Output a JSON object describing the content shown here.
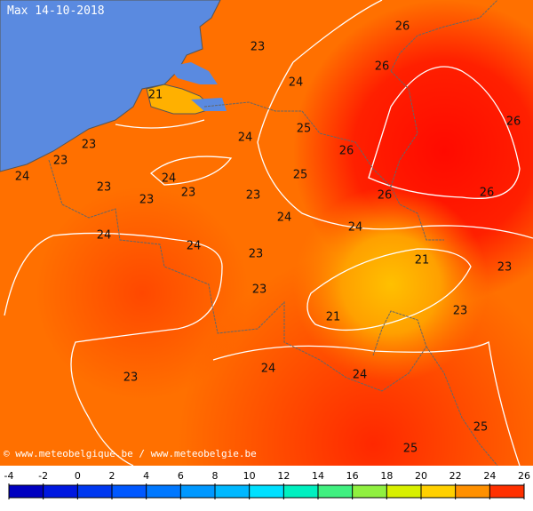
{
  "title": "Max 14-10-2018",
  "credit": "© www.meteobelgique.be / www.meteobelgie.be",
  "map_labels": [
    23,
    26,
    26,
    24,
    21,
    26,
    25,
    24,
    23,
    26,
    23,
    24,
    25,
    24,
    23,
    23,
    26,
    26,
    23,
    23,
    24,
    24,
    24,
    24,
    23,
    21,
    23,
    23,
    23,
    21,
    24,
    24,
    23,
    25,
    25
  ],
  "colorbar": {
    "ticks": [
      -4,
      -2,
      0,
      2,
      4,
      6,
      8,
      10,
      12,
      14,
      16,
      18,
      20,
      22,
      24,
      26
    ],
    "colors": [
      "#0000c0",
      "#0018e0",
      "#0038f0",
      "#0058ff",
      "#0078ff",
      "#0098ff",
      "#00b8ff",
      "#00e0ff",
      "#00f0c0",
      "#40f080",
      "#90f040",
      "#d8f000",
      "#ffd000",
      "#ff9000",
      "#ff3000"
    ]
  }
}
